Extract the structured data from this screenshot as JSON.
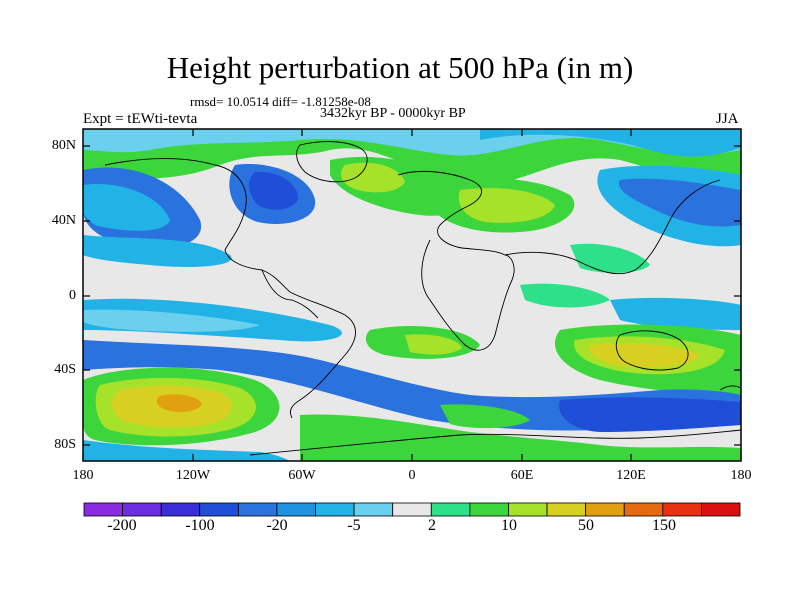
{
  "title": "Height perturbation at 500 hPa (in m)",
  "stats": "rmsd= 10.0514 diff= -1.81258e-08",
  "expt": "Expt = tEWti-tevta",
  "period": "3432kyr BP - 0000kyr BP",
  "season": "JJA",
  "lat_ticks": [
    "80N",
    "40N",
    "0",
    "40S",
    "80S"
  ],
  "lon_ticks": [
    "180",
    "120W",
    "60W",
    "0",
    "60E",
    "120E",
    "180"
  ],
  "colorbar": {
    "labels": [
      "-200",
      "-100",
      "-20",
      "-5",
      "2",
      "10",
      "50",
      "150"
    ],
    "colors": [
      "#8a2be2",
      "#6a2ee0",
      "#3a2fd6",
      "#1f4fd8",
      "#2a72de",
      "#1f92e0",
      "#22b3e6",
      "#6ad0ee",
      "#e8e8e8",
      "#2ee08a",
      "#3cd63c",
      "#a6e22a",
      "#d8d020",
      "#e0a010",
      "#e66a10",
      "#e83010",
      "#d81010"
    ]
  }
}
